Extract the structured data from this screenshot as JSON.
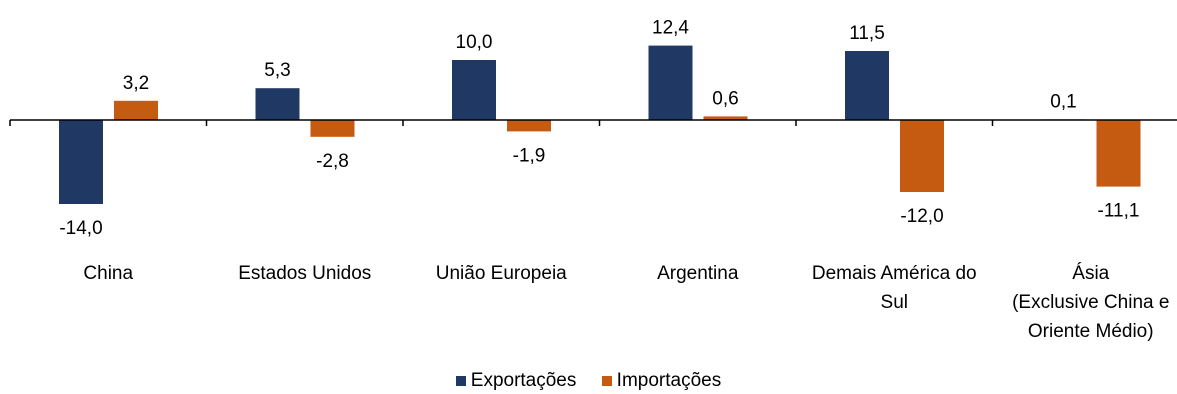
{
  "chart_data": {
    "type": "bar",
    "categories": [
      [
        "China"
      ],
      [
        "Estados Unidos"
      ],
      [
        "União Europeia"
      ],
      [
        "Argentina"
      ],
      [
        "Demais América do",
        "Sul"
      ],
      [
        "Ásia",
        "(Exclusive China e",
        "Oriente Médio)"
      ]
    ],
    "series": [
      {
        "name": "Exportações",
        "color": "#203864",
        "values": [
          -14.0,
          5.3,
          10.0,
          12.4,
          11.5,
          0.1
        ],
        "labels": [
          "-14,0",
          "5,3",
          "10,0",
          "12,4",
          "11,5",
          "0,1"
        ]
      },
      {
        "name": "Importações",
        "color": "#C55A11",
        "values": [
          3.2,
          -2.8,
          -1.9,
          0.6,
          -12.0,
          -11.1
        ],
        "labels": [
          "3,2",
          "-2,8",
          "-1,9",
          "0,6",
          "-12,0",
          "-11,1"
        ]
      }
    ],
    "legend_position": "bottom",
    "grid": false
  }
}
